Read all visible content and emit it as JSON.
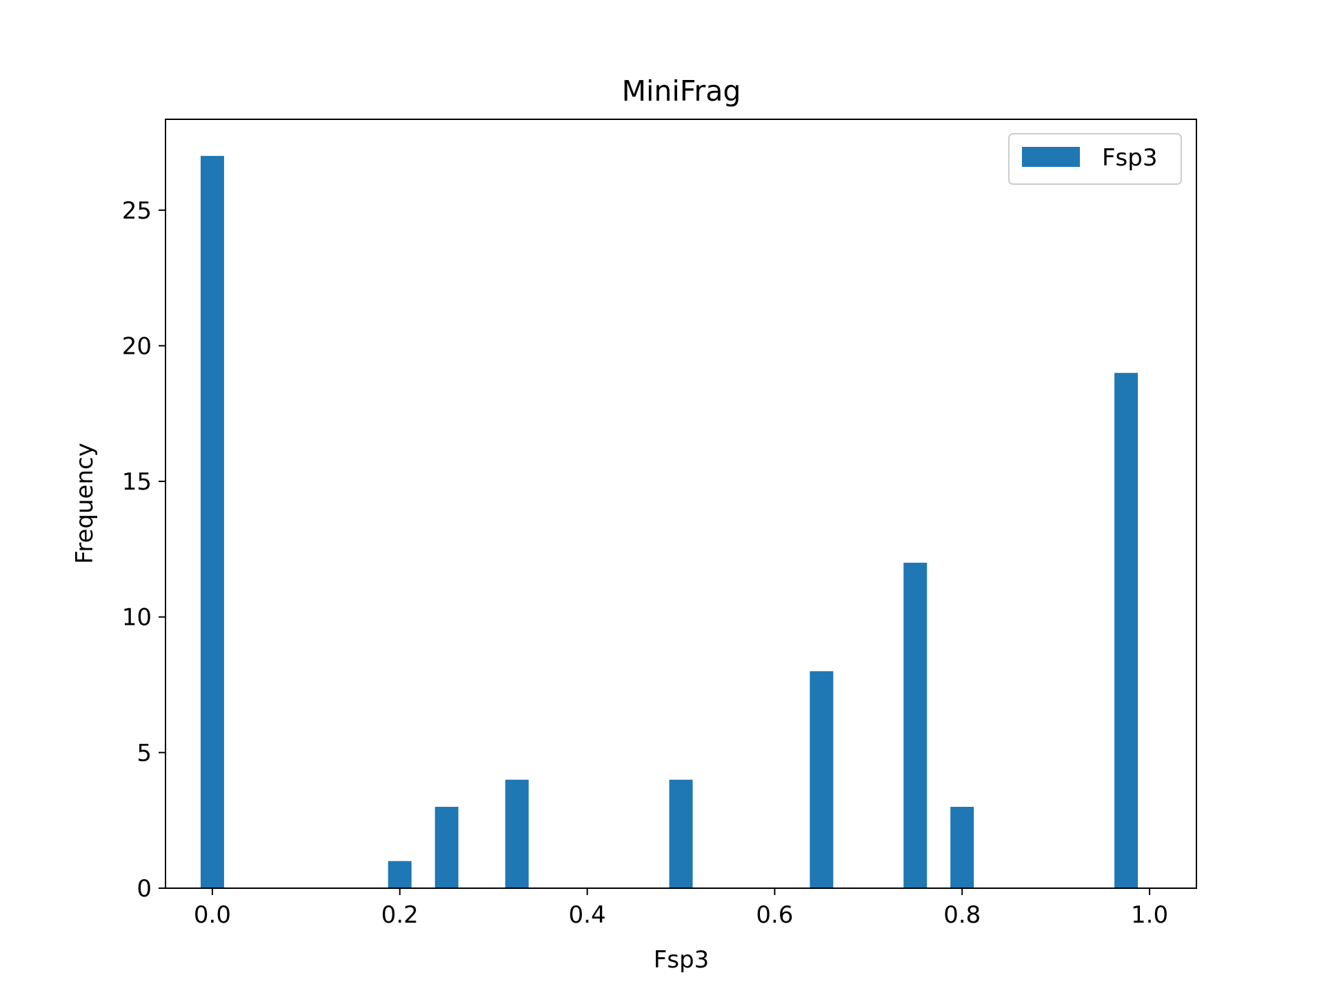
{
  "chart_data": {
    "type": "bar",
    "title": "MiniFrag",
    "xlabel": "Fsp3",
    "ylabel": "Frequency",
    "xlim": [
      -0.05,
      1.05
    ],
    "ylim": [
      0,
      28.35
    ],
    "x_ticks": [
      0.0,
      0.2,
      0.4,
      0.6,
      0.8,
      1.0
    ],
    "x_tick_labels": [
      "0.0",
      "0.2",
      "0.4",
      "0.6",
      "0.8",
      "1.0"
    ],
    "y_ticks": [
      0,
      5,
      10,
      15,
      20,
      25
    ],
    "y_tick_labels": [
      "0",
      "5",
      "10",
      "15",
      "20",
      "25"
    ],
    "bin_width": 0.025,
    "series": [
      {
        "name": "Fsp3",
        "color": "#1f77b4",
        "bins": [
          {
            "x": 0.0,
            "value": 27
          },
          {
            "x": 0.2,
            "value": 1
          },
          {
            "x": 0.25,
            "value": 3
          },
          {
            "x": 0.325,
            "value": 4
          },
          {
            "x": 0.5,
            "value": 4
          },
          {
            "x": 0.65,
            "value": 8
          },
          {
            "x": 0.75,
            "value": 12
          },
          {
            "x": 0.8,
            "value": 3
          },
          {
            "x": 0.975,
            "value": 19
          }
        ]
      }
    ],
    "legend": {
      "position": "top-right",
      "entries": [
        "Fsp3"
      ]
    },
    "grid": false
  }
}
